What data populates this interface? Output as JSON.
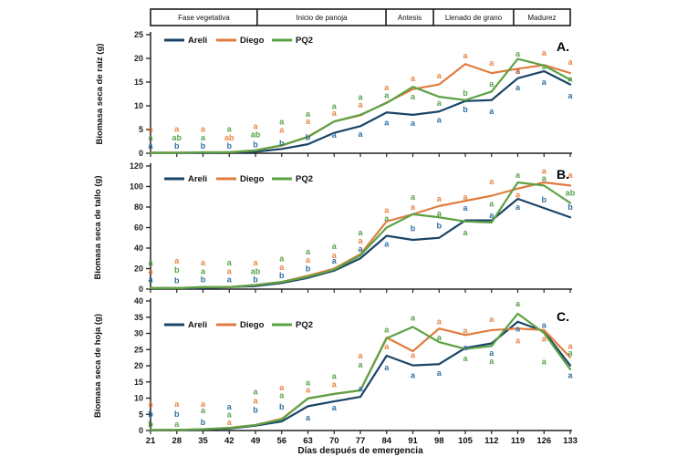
{
  "phase_band": {
    "segments": [
      {
        "label": "Fase vegetativa",
        "from": 0.0,
        "to": 0.254
      },
      {
        "label": "Inicio de panoja",
        "from": 0.254,
        "to": 0.561
      },
      {
        "label": "Antesis",
        "from": 0.561,
        "to": 0.674
      },
      {
        "label": "Llenado de grano",
        "from": 0.674,
        "to": 0.865
      },
      {
        "label": "Madurez",
        "from": 0.865,
        "to": 1.0
      }
    ]
  },
  "x_axis": {
    "title": "Días después de emergencia",
    "ticks": [
      21,
      28,
      35,
      42,
      49,
      56,
      63,
      70,
      77,
      84,
      91,
      98,
      105,
      112,
      119,
      126,
      133
    ]
  },
  "legend": {
    "items": [
      "Areli",
      "Diego",
      "PQ2"
    ]
  },
  "colors": {
    "line": {
      "Areli": "#1A4568",
      "Diego": "#E07C3E",
      "PQ2": "#5CA244"
    },
    "letter": {
      "Areli": "#2F6F9F",
      "Diego": "#E8823F",
      "PQ2": "#55A146"
    },
    "axis": "#222222"
  },
  "chart_data": [
    {
      "id": "A",
      "type": "line",
      "panel_label": "A.",
      "ylabel": "Biomasa seca de raíz (g)",
      "ylim": [
        0,
        25
      ],
      "yticks": [
        0,
        5,
        10,
        15,
        20,
        25
      ],
      "x": [
        21,
        28,
        35,
        42,
        49,
        56,
        63,
        70,
        77,
        84,
        91,
        98,
        105,
        112,
        119,
        126,
        133
      ],
      "series": [
        {
          "name": "Areli",
          "values": [
            0.1,
            0.1,
            0.1,
            0.2,
            0.3,
            0.9,
            1.9,
            4.3,
            5.7,
            8.6,
            8.1,
            8.8,
            11.0,
            11.2,
            15.8,
            17.3,
            14.5
          ]
        },
        {
          "name": "Diego",
          "values": [
            0.1,
            0.1,
            0.2,
            0.2,
            0.6,
            1.6,
            3.5,
            6.7,
            8.0,
            10.7,
            13.5,
            14.5,
            18.8,
            16.9,
            17.8,
            18.6,
            16.9
          ]
        },
        {
          "name": "PQ2",
          "values": [
            0.1,
            0.1,
            0.2,
            0.2,
            0.6,
            1.7,
            3.4,
            6.7,
            8.1,
            10.6,
            14.0,
            11.9,
            11.2,
            13.0,
            19.9,
            18.5,
            15.5
          ]
        }
      ],
      "letters": [
        [
          "a:Diego:5.1",
          "a:PQ2:3.3",
          "a:Areli:1.5"
        ],
        [
          "a:Diego:5.1",
          "ab:PQ2:3.3",
          "b:Areli:1.5"
        ],
        [
          "a:Diego:5.1",
          "a:PQ2:3.3",
          "b:Areli:1.5"
        ],
        [
          "a:PQ2:5.1",
          "ab:Diego:3.3",
          "b:Areli:1.5"
        ],
        [
          "a:Diego:5.7",
          "ab:PQ2:3.9",
          "b:Areli:1.8"
        ],
        [
          "a:PQ2:6.6",
          "a:Diego:4.9",
          "b:Areli:2.1"
        ],
        [
          "a:PQ2:8.3",
          "a:Diego:6.7",
          "b:Areli:3.4"
        ],
        [
          "a:PQ2:9.9",
          "a:Diego:8.5",
          "a:Areli:3.8"
        ],
        [
          "a:PQ2:11.8",
          "a:Diego:10.2",
          "a:Areli:4.0"
        ],
        [
          "a:Diego:13.8",
          "a:PQ2:12.2",
          "a:Areli:6.4"
        ],
        [
          "a:Diego:15.8",
          "a:PQ2:11.9",
          "a:Areli:6.3"
        ],
        [
          "a:Diego:16.3",
          "a:PQ2:10.6",
          "a:Areli:7.0"
        ],
        [
          "a:Diego:20.6",
          "b:PQ2:12.7",
          "b:Areli:9.2"
        ],
        [
          "a:Diego:19.0",
          "a:PQ2:14.6",
          "a:Areli:8.8"
        ],
        [
          "a:PQ2:21.0",
          "a:Diego:17.3:#A3403C",
          "a:Areli:13.8"
        ],
        [
          "a:Diego:21.2",
          "a:PQ2:18.3",
          "a:Areli:15.0"
        ],
        [
          "a:Diego:19.2",
          "a:PQ2:15.7",
          "a:Areli:12.1"
        ]
      ]
    },
    {
      "id": "B",
      "type": "line",
      "panel_label": "B.",
      "ylabel": "Biomasa seca  de tallo (g)",
      "ylim": [
        0,
        120
      ],
      "yticks": [
        0,
        20,
        40,
        60,
        80,
        100,
        120
      ],
      "x": [
        21,
        28,
        35,
        42,
        49,
        56,
        63,
        70,
        77,
        84,
        91,
        98,
        105,
        112,
        119,
        126,
        133
      ],
      "series": [
        {
          "name": "Areli",
          "values": [
            1,
            1,
            1,
            2,
            3,
            6,
            11,
            18,
            30,
            52,
            48,
            50,
            67,
            67,
            88,
            79,
            70
          ]
        },
        {
          "name": "Diego",
          "values": [
            1,
            1,
            2,
            2,
            4,
            7,
            13,
            20,
            34,
            66,
            73,
            81,
            86,
            91,
            98,
            104,
            101
          ]
        },
        {
          "name": "PQ2",
          "values": [
            1,
            1,
            2,
            2,
            4,
            7,
            12,
            19,
            33,
            60,
            73,
            70,
            66,
            65,
            104,
            101,
            84
          ]
        }
      ],
      "letters": [
        [
          "a:PQ2:26",
          "a:Diego:17.5",
          "a:Areli:9.5"
        ],
        [
          "a:Diego:27.5",
          "b:PQ2:18.5",
          "b:Areli:8.5"
        ],
        [
          "a:Diego:26",
          "a:PQ2:17.5",
          "b:Areli:9.5"
        ],
        [
          "a:PQ2:26",
          "a:Diego:17.5",
          "a:Areli:9.5"
        ],
        [
          "a:Diego:26",
          "ab:PQ2:17.5",
          "b:Areli:9.5"
        ],
        [
          "a:PQ2:30",
          "a:Diego:21.5",
          "b:Areli:13.5"
        ],
        [
          "a:PQ2:36.5",
          "a:Diego:28.5",
          "b:Areli:20"
        ],
        [
          "a:PQ2:42",
          "a:Diego:33",
          "a:Areli:27.5"
        ],
        [
          "a:PQ2:55",
          "a:Diego:47",
          "a:Areli:39"
        ],
        [
          "a:Diego:77",
          "a:PQ2:69",
          "a:Areli:44"
        ],
        [
          "a:PQ2:90",
          "a:Diego:80",
          "b:Areli:59"
        ],
        [
          "a:Diego:88",
          "a:PQ2:74",
          "b:Areli:62"
        ],
        [
          "a:Diego:90",
          "a:Areli:79",
          "a:PQ2:55"
        ],
        [
          "a:Diego:105",
          "a:PQ2:83",
          "a:Areli:72"
        ],
        [
          "a:PQ2:111",
          "a:Diego:92",
          "a:Areli:80"
        ],
        [
          "a:Diego:115",
          "a:PQ2:108",
          "b:Areli:87"
        ],
        [
          "a:Diego:111",
          "ab:PQ2:94",
          "b:Areli:80"
        ]
      ]
    },
    {
      "id": "C",
      "type": "line",
      "panel_label": "C.",
      "ylabel": "Biomasa seca  de hoja (g)",
      "ylim": [
        0,
        40
      ],
      "yticks": [
        0,
        5,
        10,
        15,
        20,
        25,
        30,
        35,
        40
      ],
      "x": [
        21,
        28,
        35,
        42,
        49,
        56,
        63,
        70,
        77,
        84,
        91,
        98,
        105,
        112,
        119,
        126,
        133
      ],
      "series": [
        {
          "name": "Areli",
          "values": [
            0.1,
            0.1,
            0.3,
            0.6,
            1.5,
            2.8,
            7.5,
            9.0,
            10.4,
            23.1,
            20.1,
            20.5,
            25.5,
            26.9,
            33.6,
            30.6,
            20.1
          ]
        },
        {
          "name": "Diego",
          "values": [
            0.2,
            0.2,
            0.4,
            0.8,
            1.7,
            3.6,
            9.9,
            11.3,
            12.4,
            28.7,
            24.5,
            31.5,
            29.5,
            31.0,
            31.5,
            31.0,
            22.6
          ]
        },
        {
          "name": "PQ2",
          "values": [
            0.2,
            0.2,
            0.4,
            0.8,
            1.7,
            3.4,
            9.9,
            11.3,
            12.4,
            28.5,
            32.0,
            27.3,
            25.2,
            26.1,
            36.1,
            30.1,
            18.9
          ]
        }
      ],
      "letters": [
        [
          "a:Diego:8.1",
          "b:Areli:5.1",
          "b:PQ2:2.0"
        ],
        [
          "a:Diego:8.1",
          "b:Areli:5.1",
          "a:PQ2:2.0"
        ],
        [
          "a:Diego:8.2",
          "a:PQ2:6.2",
          "b:Areli:2.6"
        ],
        [
          "a:Areli:7.3",
          "a:PQ2:5.0",
          "a:Diego:2.5"
        ],
        [
          "a:PQ2:12.0",
          "a:Diego:9.2",
          "b:Areli:6.4"
        ],
        [
          "a:Diego:13.2",
          "a:PQ2:10.9",
          "b:Areli:7.3"
        ],
        [
          "a:PQ2:14.8",
          "a:Diego:12.6",
          "a:Areli:3.9"
        ],
        [
          "a:PQ2:16.7",
          "a:Diego:14.2",
          "a:Areli:7.0"
        ],
        [
          "a:Diego:23.1",
          "a:PQ2:20.3",
          "a:Areli:13.0"
        ],
        [
          "a:PQ2:31.1",
          "a:Diego:25.9",
          "a:Areli:19.5"
        ],
        [
          "a:PQ2:34.8",
          "a:Diego:23.3",
          "a:Areli:17.0"
        ],
        [
          "a:Diego:33.6",
          "a:PQ2:28.7",
          "a:Areli:17.7"
        ],
        [
          "a:Diego:30.8",
          "a:Areli:25.7",
          "a:PQ2:22.2"
        ],
        [
          "a:Diego:34.4",
          "a:Areli:23.9",
          "a:PQ2:21.4"
        ],
        [
          "a:PQ2:39.2",
          "a:Areli:31.4",
          "a:Diego:27.8"
        ],
        [
          "a:Areli:32.5",
          "a:Diego:28.3",
          "a:PQ2:21.2"
        ],
        [
          "a:Diego:26.1",
          "a:PQ2:24.0",
          "a:Areli:17.0"
        ]
      ]
    }
  ]
}
